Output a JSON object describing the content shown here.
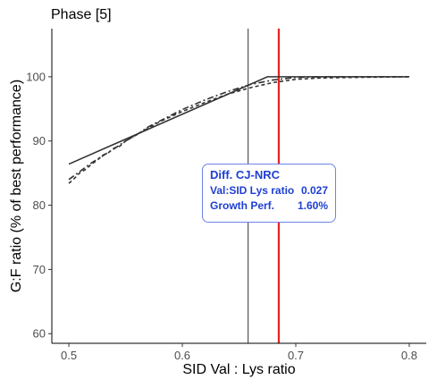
{
  "chart_data": {
    "type": "line",
    "title": "Phase [5]",
    "xlabel": "SID Val : Lys ratio",
    "ylabel": "G:F ratio (% of best performance)",
    "xlim": [
      0.485,
      0.815
    ],
    "ylim": [
      58.5,
      107.5
    ],
    "xticks": [
      0.5,
      0.6,
      0.7,
      0.8
    ],
    "xtick_labels": [
      "0.5",
      "0.6",
      "0.7",
      "0.8"
    ],
    "yticks": [
      60,
      70,
      80,
      90,
      100
    ],
    "ytick_labels": [
      "60",
      "70",
      "80",
      "90",
      "100"
    ],
    "series": [
      {
        "style": "solid",
        "color": "#333333",
        "x": [
          0.5,
          0.675,
          0.8
        ],
        "y": [
          86.4,
          100.0,
          100.0
        ]
      },
      {
        "style": "dashed",
        "color": "#333333",
        "x": [
          0.5,
          0.505,
          0.51,
          0.515,
          0.52,
          0.525,
          0.53,
          0.535,
          0.54,
          0.545,
          0.55,
          0.56,
          0.57,
          0.58,
          0.6,
          0.62,
          0.64,
          0.66,
          0.68,
          0.7,
          0.72,
          0.75,
          0.8
        ],
        "y": [
          83.4,
          84.2,
          85.1,
          85.6,
          86.4,
          87.0,
          87.8,
          88.2,
          88.9,
          89.2,
          90.0,
          91.0,
          92.0,
          93.0,
          94.6,
          96.0,
          97.3,
          98.3,
          99.1,
          99.6,
          99.8,
          99.9,
          100.0
        ]
      },
      {
        "style": "dotdash",
        "color": "#333333",
        "x": [
          0.5,
          0.51,
          0.52,
          0.53,
          0.54,
          0.55,
          0.56,
          0.57,
          0.58,
          0.6,
          0.62,
          0.64,
          0.66,
          0.68,
          0.7,
          0.72,
          0.75,
          0.8
        ],
        "y": [
          84.0,
          85.3,
          86.6,
          87.7,
          88.8,
          90.0,
          91.0,
          92.2,
          93.1,
          94.9,
          96.4,
          97.7,
          98.8,
          99.5,
          99.9,
          100.0,
          100.0,
          100.0
        ]
      }
    ],
    "vlines": [
      {
        "x": 0.658,
        "color": "#333333"
      },
      {
        "x": 0.685,
        "color": "#e8211d"
      }
    ],
    "annotation": {
      "title": "Diff. CJ-NRC",
      "rows": [
        {
          "label": "Val:SID Lys ratio",
          "value": "0.027"
        },
        {
          "label": "Growth Perf.",
          "value": "1.60%"
        }
      ],
      "color": "#1f3fd1"
    },
    "grid": false,
    "legend": "none"
  }
}
